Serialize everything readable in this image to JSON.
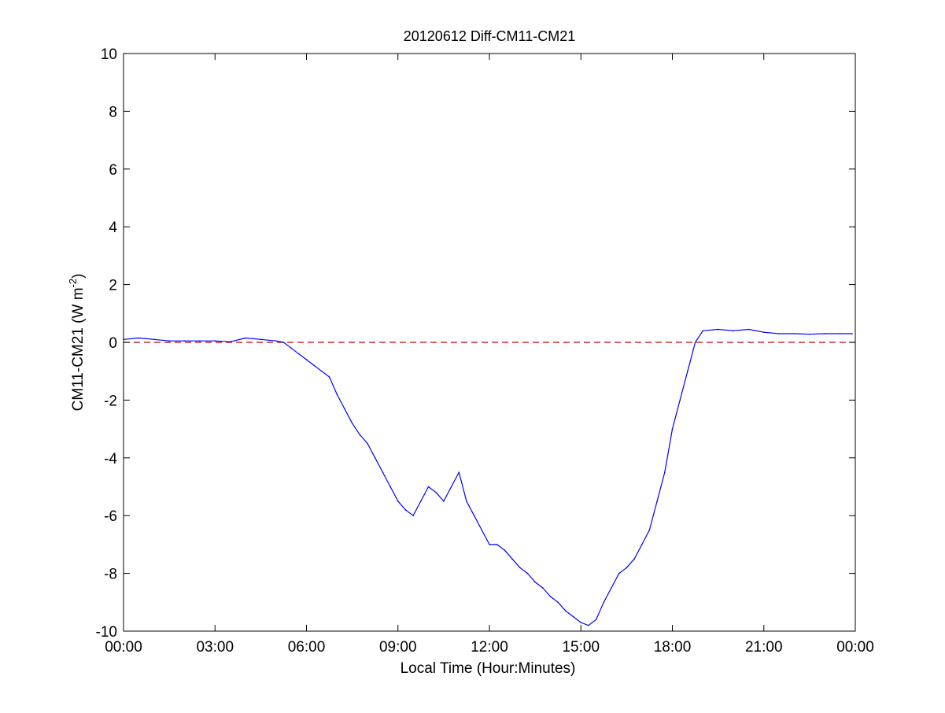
{
  "chart_data": {
    "type": "line",
    "title": "20120612 Diff-CM11-CM21",
    "xlabel": "Local Time (Hour:Minutes)",
    "ylabel_main": "CM11-CM21 (W m",
    "ylabel_sup": "-2",
    "ylabel_close": ")",
    "xlim": [
      0,
      24
    ],
    "ylim": [
      -10,
      10
    ],
    "x_ticks": [
      0,
      3,
      6,
      9,
      12,
      15,
      18,
      21,
      24
    ],
    "x_tick_labels": [
      "00:00",
      "03:00",
      "06:00",
      "09:00",
      "12:00",
      "15:00",
      "18:00",
      "21:00",
      "00:00"
    ],
    "y_ticks": [
      -10,
      -8,
      -6,
      -4,
      -2,
      0,
      2,
      4,
      6,
      8,
      10
    ],
    "y_tick_labels": [
      "-10",
      "-8",
      "-6",
      "-4",
      "-2",
      "0",
      "2",
      "4",
      "6",
      "8",
      "10"
    ],
    "grid": false,
    "reference_line": {
      "y": 0,
      "color": "#cc0000",
      "style": "dashed"
    },
    "series": [
      {
        "color": "#0000ff",
        "x": [
          0.0,
          0.5,
          1.0,
          1.5,
          2.0,
          2.5,
          3.0,
          3.5,
          4.0,
          4.5,
          5.0,
          5.25,
          5.5,
          5.75,
          6.0,
          6.25,
          6.5,
          6.75,
          7.0,
          7.25,
          7.5,
          7.75,
          8.0,
          8.25,
          8.5,
          8.75,
          9.0,
          9.25,
          9.5,
          9.75,
          10.0,
          10.25,
          10.5,
          10.75,
          11.0,
          11.25,
          11.5,
          11.75,
          12.0,
          12.25,
          12.5,
          12.75,
          13.0,
          13.25,
          13.5,
          13.75,
          14.0,
          14.25,
          14.5,
          14.75,
          15.0,
          15.25,
          15.5,
          15.75,
          16.0,
          16.25,
          16.5,
          16.75,
          17.0,
          17.25,
          17.5,
          17.75,
          18.0,
          18.25,
          18.5,
          18.75,
          19.0,
          19.5,
          20.0,
          20.5,
          21.0,
          21.5,
          22.0,
          22.5,
          23.0,
          23.5,
          23.9
        ],
        "y": [
          0.1,
          0.15,
          0.1,
          0.05,
          0.05,
          0.05,
          0.05,
          0.02,
          0.15,
          0.1,
          0.05,
          0.0,
          -0.2,
          -0.4,
          -0.6,
          -0.8,
          -1.0,
          -1.2,
          -1.8,
          -2.3,
          -2.8,
          -3.2,
          -3.5,
          -4.0,
          -4.5,
          -5.0,
          -5.5,
          -5.8,
          -6.0,
          -5.5,
          -5.0,
          -5.2,
          -5.5,
          -5.0,
          -4.5,
          -5.5,
          -6.0,
          -6.5,
          -7.0,
          -7.0,
          -7.2,
          -7.5,
          -7.8,
          -8.0,
          -8.3,
          -8.5,
          -8.8,
          -9.0,
          -9.3,
          -9.5,
          -9.7,
          -9.8,
          -9.6,
          -9.0,
          -8.5,
          -8.0,
          -7.8,
          -7.5,
          -7.0,
          -6.5,
          -5.5,
          -4.5,
          -3.0,
          -2.0,
          -1.0,
          0.0,
          0.4,
          0.45,
          0.4,
          0.45,
          0.35,
          0.3,
          0.3,
          0.28,
          0.3,
          0.3,
          0.3
        ]
      }
    ]
  }
}
